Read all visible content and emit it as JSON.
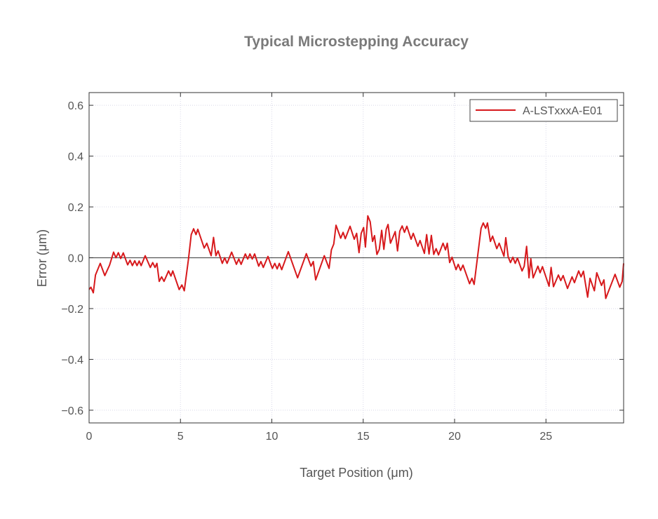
{
  "chart_data": {
    "type": "line",
    "title": "Typical Microstepping Accuracy",
    "xlabel": "Target Position (μm)",
    "ylabel": "Error (μm)",
    "xlim": [
      0,
      29.25
    ],
    "ylim": [
      -0.65,
      0.65
    ],
    "xticks": [
      0,
      5,
      10,
      15,
      20,
      25
    ],
    "yticks": [
      -0.6,
      -0.4,
      -0.2,
      0.0,
      0.2,
      0.4,
      0.6
    ],
    "ytick_labels": [
      "−0.6",
      "−0.4",
      "−0.2",
      "0.0",
      "0.2",
      "0.4",
      "0.6"
    ],
    "grid": true,
    "zero_line": true,
    "legend_position": "top-right",
    "series": [
      {
        "name": "A-LSTxxxA-E01",
        "color": "#d7191c",
        "x": [
          0,
          0.1,
          0.23,
          0.35,
          0.61,
          0.86,
          1.12,
          1.34,
          1.47,
          1.6,
          1.73,
          1.87,
          2.11,
          2.24,
          2.37,
          2.5,
          2.62,
          2.74,
          2.85,
          3.07,
          3.35,
          3.48,
          3.61,
          3.71,
          3.84,
          3.97,
          4.1,
          4.35,
          4.48,
          4.58,
          4.93,
          5.08,
          5.21,
          5.44,
          5.59,
          5.72,
          5.85,
          5.95,
          6.3,
          6.44,
          6.68,
          6.81,
          6.94,
          7.06,
          7.29,
          7.42,
          7.55,
          7.8,
          8.06,
          8.19,
          8.32,
          8.55,
          8.68,
          8.8,
          8.93,
          9.06,
          9.28,
          9.4,
          9.53,
          9.79,
          9.98,
          10.03,
          10.16,
          10.29,
          10.41,
          10.54,
          10.9,
          11.41,
          11.89,
          12.14,
          12.27,
          12.4,
          12.87,
          13.13,
          13.26,
          13.39,
          13.51,
          13.77,
          13.9,
          14.02,
          14.28,
          14.51,
          14.64,
          14.77,
          14.89,
          15.02,
          15.12,
          15.25,
          15.38,
          15.51,
          15.62,
          15.75,
          15.88,
          16.01,
          16.13,
          16.26,
          16.36,
          16.49,
          16.75,
          16.88,
          17.0,
          17.13,
          17.26,
          17.39,
          17.62,
          17.74,
          17.99,
          18.11,
          18.35,
          18.47,
          18.6,
          18.73,
          18.86,
          18.99,
          19.12,
          19.37,
          19.5,
          19.6,
          19.73,
          19.86,
          20.08,
          20.2,
          20.33,
          20.46,
          20.82,
          20.95,
          21.07,
          21.45,
          21.57,
          21.7,
          21.8,
          21.96,
          22.08,
          22.31,
          22.44,
          22.7,
          22.8,
          22.93,
          23.06,
          23.19,
          23.32,
          23.44,
          23.69,
          23.81,
          23.94,
          24.07,
          24.17,
          24.3,
          24.56,
          24.68,
          24.81,
          25.17,
          25.28,
          25.41,
          25.68,
          25.81,
          25.94,
          26.18,
          26.43,
          26.56,
          26.79,
          26.92,
          27.05,
          27.28,
          27.41,
          27.65,
          27.78,
          28.04,
          28.17,
          28.27,
          28.78,
          29.04,
          29.17,
          29.27
        ],
        "y": [
          -0.125,
          -0.116,
          -0.138,
          -0.068,
          -0.022,
          -0.07,
          -0.029,
          0.022,
          0,
          0.02,
          -0.003,
          0.019,
          -0.028,
          -0.01,
          -0.031,
          -0.012,
          -0.031,
          -0.013,
          -0.031,
          0.008,
          -0.038,
          -0.019,
          -0.038,
          -0.022,
          -0.093,
          -0.075,
          -0.093,
          -0.052,
          -0.072,
          -0.052,
          -0.125,
          -0.107,
          -0.13,
          -0.005,
          0.091,
          0.114,
          0.091,
          0.112,
          0.038,
          0.057,
          0.008,
          0.08,
          0.008,
          0.027,
          -0.022,
          0,
          -0.022,
          0.022,
          -0.026,
          -0.005,
          -0.026,
          0.015,
          -0.005,
          0.015,
          -0.005,
          0.015,
          -0.033,
          -0.015,
          -0.038,
          0.005,
          -0.033,
          -0.042,
          -0.022,
          -0.044,
          -0.022,
          -0.047,
          0.024,
          -0.079,
          0.016,
          -0.033,
          -0.015,
          -0.087,
          0.008,
          -0.042,
          0.031,
          0.054,
          0.128,
          0.077,
          0.1,
          0.075,
          0.124,
          0.073,
          0.096,
          0.02,
          0.096,
          0.119,
          0.042,
          0.165,
          0.142,
          0.064,
          0.087,
          0.013,
          0.033,
          0.108,
          0.033,
          0.112,
          0.131,
          0.057,
          0.103,
          0.027,
          0.105,
          0.125,
          0.1,
          0.124,
          0.073,
          0.096,
          0.045,
          0.068,
          0.017,
          0.091,
          0.015,
          0.088,
          0.013,
          0.036,
          0.011,
          0.057,
          0.031,
          0.057,
          -0.019,
          0.002,
          -0.047,
          -0.026,
          -0.05,
          -0.029,
          -0.102,
          -0.081,
          -0.105,
          0.116,
          0.137,
          0.116,
          0.137,
          0.064,
          0.085,
          0.036,
          0.057,
          0.006,
          0.079,
          0.004,
          -0.019,
          0.002,
          -0.022,
          -0.001,
          -0.052,
          -0.033,
          0.045,
          -0.079,
          -0.004,
          -0.079,
          -0.033,
          -0.059,
          -0.035,
          -0.112,
          -0.038,
          -0.114,
          -0.068,
          -0.09,
          -0.07,
          -0.121,
          -0.075,
          -0.098,
          -0.052,
          -0.075,
          -0.053,
          -0.155,
          -0.081,
          -0.13,
          -0.059,
          -0.109,
          -0.087,
          -0.16,
          -0.065,
          -0.116,
          -0.093,
          -0.022
        ]
      }
    ]
  }
}
